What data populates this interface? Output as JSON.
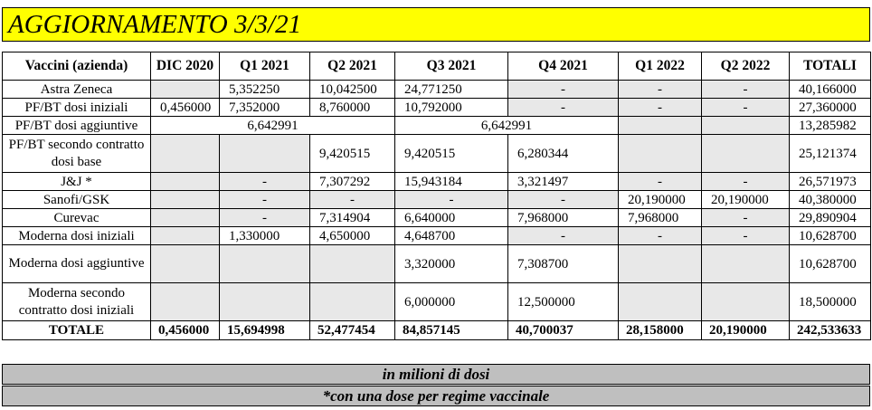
{
  "title": "AGGIORNAMENTO 3/3/21",
  "headers": [
    "Vaccini (azienda)",
    "DIC 2020",
    "Q1 2021",
    "Q2 2021",
    "Q3 2021",
    "Q4 2021",
    "Q1 2022",
    "Q2 2022",
    "TOTALI"
  ],
  "rows": [
    {
      "name": "Astra Zeneca",
      "dic2020": "",
      "q1_2021": "5,352250",
      "q2_2021": "10,042500",
      "q3_2021": "24,771250",
      "q4_2021": "-",
      "q1_2022": "-",
      "q2_2022": "-",
      "totali": "40,166000"
    },
    {
      "name": "PF/BT dosi iniziali",
      "dic2020": "0,456000",
      "q1_2021": "7,352000",
      "q2_2021": "8,760000",
      "q3_2021": "10,792000",
      "q4_2021": "-",
      "q1_2022": "-",
      "q2_2022": "-",
      "totali": "27,360000"
    },
    {
      "name": "PF/BT dosi aggiuntive",
      "merged_q1q2": "6,642991",
      "merged_q3q4": "6,642991",
      "totali": "13,285982"
    },
    {
      "name": "PF/BT secondo contratto dosi base",
      "dic2020": "",
      "q1_2021": "",
      "q2_2021": "9,420515",
      "q3_2021": "9,420515",
      "q4_2021": "6,280344",
      "q1_2022": "",
      "q2_2022": "",
      "totali": "25,121374"
    },
    {
      "name": "J&J *",
      "dic2020": "",
      "q1_2021": "-",
      "q2_2021": "7,307292",
      "q3_2021": "15,943184",
      "q4_2021": "3,321497",
      "q1_2022": "-",
      "q2_2022": "-",
      "totali": "26,571973"
    },
    {
      "name": "Sanofi/GSK",
      "dic2020": "",
      "q1_2021": "-",
      "q2_2021": "-",
      "q3_2021": "-",
      "q4_2021": "-",
      "q1_2022": "20,190000",
      "q2_2022": "20,190000",
      "totali": "40,380000"
    },
    {
      "name": "Curevac",
      "dic2020": "",
      "q1_2021": "-",
      "q2_2021": "7,314904",
      "q3_2021": "6,640000",
      "q4_2021": "7,968000",
      "q1_2022": "7,968000",
      "q2_2022": "-",
      "totali": "29,890904"
    },
    {
      "name": "Moderna dosi iniziali",
      "dic2020": "",
      "q1_2021": "1,330000",
      "q2_2021": "4,650000",
      "q3_2021": "4,648700",
      "q4_2021": "-",
      "q1_2022": "-",
      "q2_2022": "-",
      "totali": "10,628700"
    },
    {
      "name": "Moderna dosi aggiuntive",
      "dic2020": "",
      "q1_2021": "",
      "q2_2021": "",
      "q3_2021": "3,320000",
      "q4_2021": "7,308700",
      "q1_2022": "",
      "q2_2022": "",
      "totali": "10,628700"
    },
    {
      "name": "Moderna secondo contratto dosi iniziali",
      "dic2020": "",
      "q1_2021": "",
      "q2_2021": "",
      "q3_2021": "6,000000",
      "q4_2021": "12,500000",
      "q1_2022": "",
      "q2_2022": "",
      "totali": "18,500000"
    }
  ],
  "total_row": {
    "name": "TOTALE",
    "dic2020": "0,456000",
    "q1_2021": "15,694998",
    "q2_2021": "52,477454",
    "q3_2021": "84,857145",
    "q4_2021": "40,700037",
    "q1_2022": "28,158000",
    "q2_2022": "20,190000",
    "totali": "242,533633"
  },
  "notes": {
    "unit": "in milioni di dosi",
    "footnote": "*con una dose per regime vaccinale"
  },
  "colors": {
    "title_bg": "#ffff00",
    "empty_cell": "#e8e8e8",
    "note_bg": "#bfbfbf"
  }
}
